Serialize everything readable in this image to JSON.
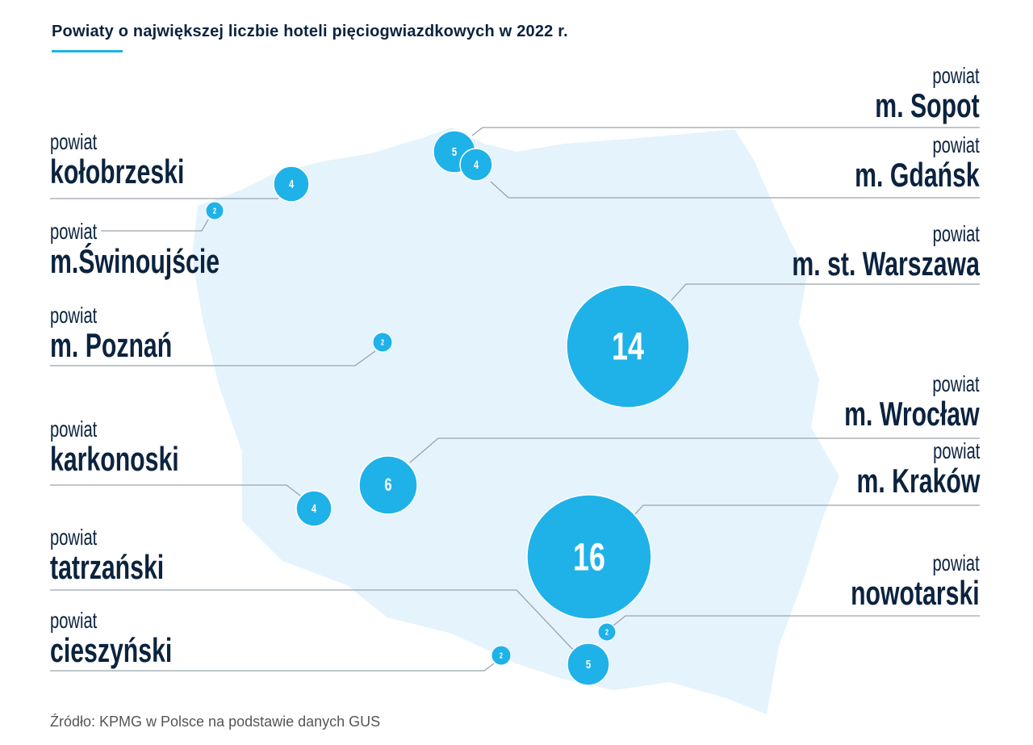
{
  "title": "Powiaty o największej liczbie hoteli pięciogwiazdkowych w 2022 r.",
  "source": "Źródło: KPMG w Polsce na podstawie danych GUS",
  "colors": {
    "marker": "#1fb2e8",
    "map": "#e4f3fc",
    "text": "#0c233f",
    "leader": "#9aa3ab"
  },
  "chart_data": {
    "type": "map",
    "title": "Powiaty o największej liczbie hoteli pięciogwiazdkowych w 2022 r.",
    "points": [
      {
        "prefix": "powiat",
        "name": "m. Sopot",
        "value": 5
      },
      {
        "prefix": "powiat",
        "name": "m. Gdańsk",
        "value": 4
      },
      {
        "prefix": "powiat",
        "name": "kołobrzeski",
        "value": 4
      },
      {
        "prefix": "powiat",
        "name": "m.Świnoujście",
        "value": 2
      },
      {
        "prefix": "powiat",
        "name": "m. Poznań",
        "value": 2
      },
      {
        "prefix": "powiat",
        "name": "m. st. Warszawa",
        "value": 14
      },
      {
        "prefix": "powiat",
        "name": "m. Wrocław",
        "value": 6
      },
      {
        "prefix": "powiat",
        "name": "karkonoski",
        "value": 4
      },
      {
        "prefix": "powiat",
        "name": "m. Kraków",
        "value": 16
      },
      {
        "prefix": "powiat",
        "name": "nowotarski",
        "value": 2
      },
      {
        "prefix": "powiat",
        "name": "tatrzański",
        "value": 5
      },
      {
        "prefix": "powiat",
        "name": "cieszyński",
        "value": 2
      }
    ]
  }
}
